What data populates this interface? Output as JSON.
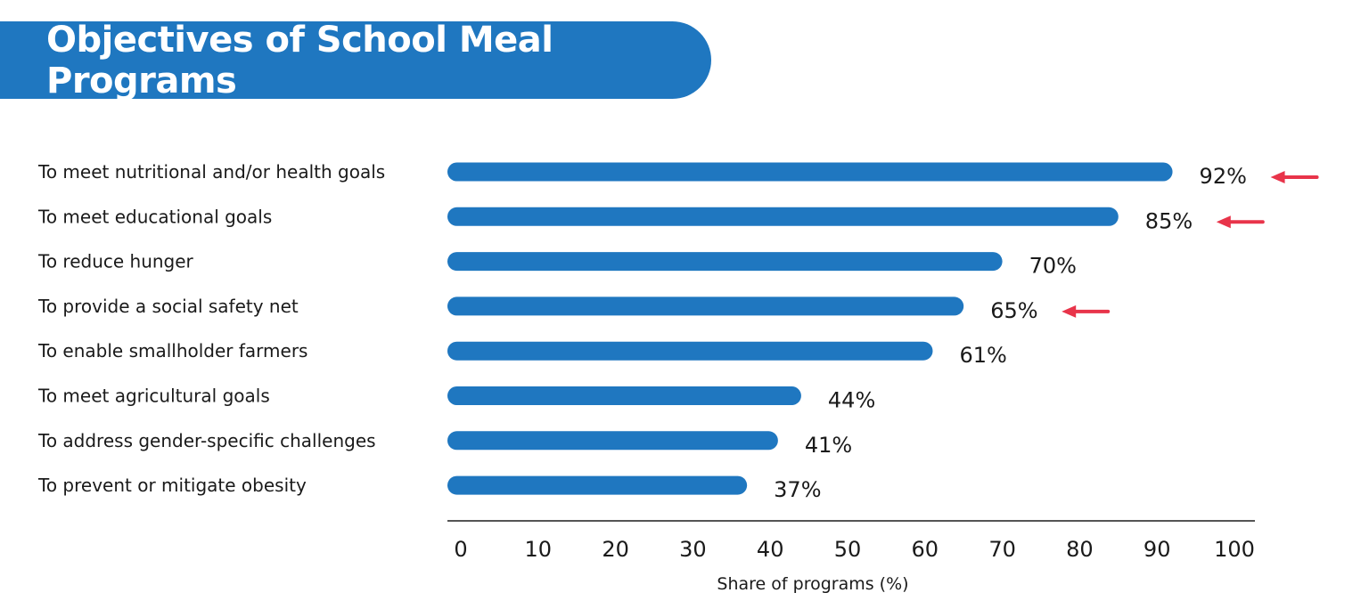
{
  "header": {
    "title": "Objectives of School Meal Programs"
  },
  "colors": {
    "banner": "#1f77c0",
    "bar": "#1f77c0",
    "arrow": "#e8344a",
    "axis": "#555555"
  },
  "chart_data": {
    "type": "bar",
    "orientation": "horizontal",
    "categories": [
      "To meet nutritional and/or health goals",
      "To meet educational goals",
      "To reduce hunger",
      "To provide a social safety net",
      "To enable smallholder farmers",
      "To meet agricultural goals",
      "To address gender-specific challenges",
      "To prevent or mitigate obesity"
    ],
    "values": [
      92,
      85,
      70,
      65,
      61,
      44,
      41,
      37
    ],
    "value_labels": [
      "92%",
      "85%",
      "70%",
      "65%",
      "61%",
      "44%",
      "41%",
      "37%"
    ],
    "highlighted": [
      true,
      true,
      false,
      true,
      false,
      false,
      false,
      false
    ],
    "xlabel": "Share of programs (%)",
    "ylabel": "",
    "xlim": [
      0,
      100
    ],
    "xticks": [
      "0",
      "10",
      "20",
      "30",
      "40",
      "50",
      "60",
      "70",
      "80",
      "90",
      "100"
    ],
    "grid": false,
    "legend": "none"
  }
}
